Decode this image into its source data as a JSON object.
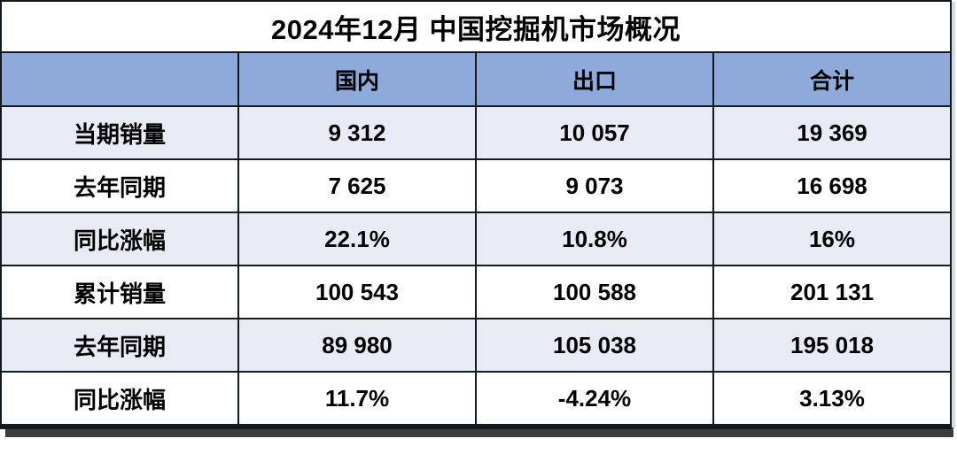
{
  "chart_data": {
    "type": "table",
    "title": "2024年12月 中国挖掘机市场概况",
    "columns": [
      "",
      "国内",
      "出口",
      "合计"
    ],
    "rows": [
      {
        "label": "当期销量",
        "values": [
          "9 312",
          "10 057",
          "19 369"
        ]
      },
      {
        "label": "去年同期",
        "values": [
          "7 625",
          "9 073",
          "16 698"
        ]
      },
      {
        "label": "同比涨幅",
        "values": [
          "22.1%",
          "10.8%",
          "16%"
        ]
      },
      {
        "label": "累计销量",
        "values": [
          "100 543",
          "100 588",
          "201 131"
        ]
      },
      {
        "label": "去年同期",
        "values": [
          "89 980",
          "105 038",
          "195 018"
        ]
      },
      {
        "label": "同比涨幅",
        "values": [
          "11.7%",
          "-4.24%",
          "3.13%"
        ]
      }
    ],
    "layout": {
      "header_bg": "#8EAADB",
      "alt_row_bg": "#E8EAF4",
      "plain_row_bg": "#FFFFFF",
      "border_color": "#14181F",
      "text_color": "#000000",
      "alternating_rows": true,
      "legend_position": "none",
      "grid": true
    }
  }
}
